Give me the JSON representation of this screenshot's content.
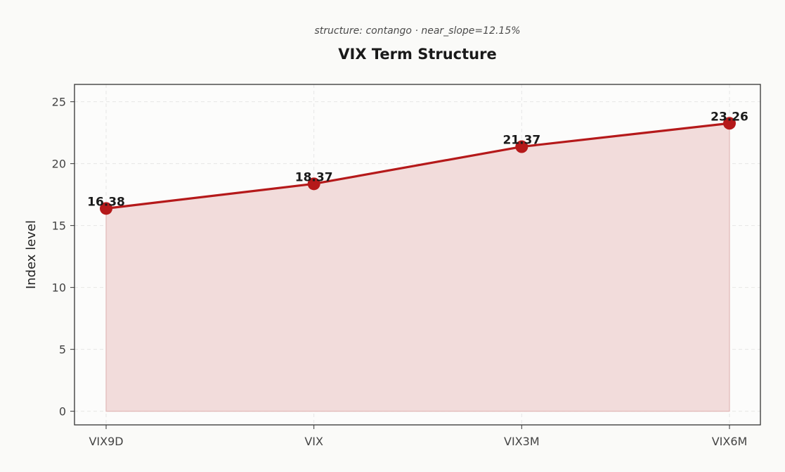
{
  "chart_data": {
    "type": "area",
    "title": "VIX Term Structure",
    "subtitle": "structure: contango · near_slope=12.15%",
    "xlabel": "",
    "ylabel": "Index level",
    "categories": [
      "VIX9D",
      "VIX",
      "VIX3M",
      "VIX6M"
    ],
    "series": [
      {
        "values": [
          16.38,
          18.37,
          21.37,
          23.26
        ]
      }
    ],
    "data_labels": [
      "16.38",
      "18.37",
      "21.37",
      "23.26"
    ],
    "ylim": [
      -1.1,
      26.4
    ],
    "yticks": [
      0,
      5,
      10,
      15,
      20,
      25
    ],
    "grid": true,
    "colors": {
      "line": "#b5191a",
      "fill": "#f2dcdb",
      "marker": "#b5191a"
    }
  }
}
